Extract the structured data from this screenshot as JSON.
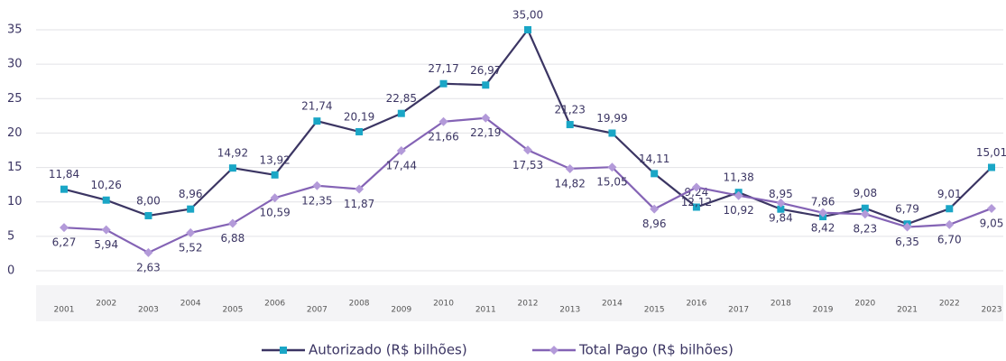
{
  "chart_data": {
    "type": "line",
    "categories": [
      "2001",
      "2002",
      "2003",
      "2004",
      "2005",
      "2006",
      "2007",
      "2008",
      "2009",
      "2010",
      "2011",
      "2012",
      "2013",
      "2014",
      "2015",
      "2016",
      "2017",
      "2018",
      "2019",
      "2020",
      "2021",
      "2022",
      "2023"
    ],
    "series": [
      {
        "name": "Autorizado (R$ bilhões)",
        "color": "#3b3563",
        "marker_color": "#1aa6c6",
        "marker": "square",
        "values": [
          11.84,
          10.26,
          8.0,
          8.96,
          14.92,
          13.92,
          21.74,
          20.19,
          22.85,
          27.17,
          26.97,
          35.0,
          21.23,
          19.99,
          14.11,
          9.24,
          11.38,
          8.95,
          7.86,
          9.08,
          6.79,
          9.01,
          15.01
        ],
        "value_labels": [
          "11,84",
          "10,26",
          "8,00",
          "8,96",
          "14,92",
          "13,92",
          "21,74",
          "20,19",
          "22,85",
          "27,17",
          "26,97",
          "35,00",
          "21,23",
          "19,99",
          "14,11",
          "9,24",
          "11,38",
          "8,95",
          "7,86",
          "9,08",
          "6,79",
          "9,01",
          "15,01"
        ]
      },
      {
        "name": "Total Pago (R$ bilhões)",
        "color": "#8463b5",
        "marker_color": "#b39ad9",
        "marker": "diamond",
        "values": [
          6.27,
          5.94,
          2.63,
          5.52,
          6.88,
          10.59,
          12.35,
          11.87,
          17.44,
          21.66,
          22.19,
          17.53,
          14.82,
          15.05,
          8.96,
          12.12,
          10.92,
          9.84,
          8.42,
          8.23,
          6.35,
          6.7,
          9.05
        ],
        "value_labels": [
          "6,27",
          "5,94",
          "2,63",
          "5,52",
          "6,88",
          "10,59",
          "12,35",
          "11,87",
          "17,44",
          "21,66",
          "22,19",
          "17,53",
          "14,82",
          "15,05",
          "8,96",
          "12,12",
          "10,92",
          "9,84",
          "8,42",
          "8,23",
          "6,35",
          "6,70",
          "9,05"
        ]
      }
    ],
    "ylim": [
      0,
      35
    ],
    "yticks": [
      0,
      5,
      10,
      15,
      20,
      25,
      30,
      35
    ],
    "grid": true,
    "legend": "bottom"
  }
}
